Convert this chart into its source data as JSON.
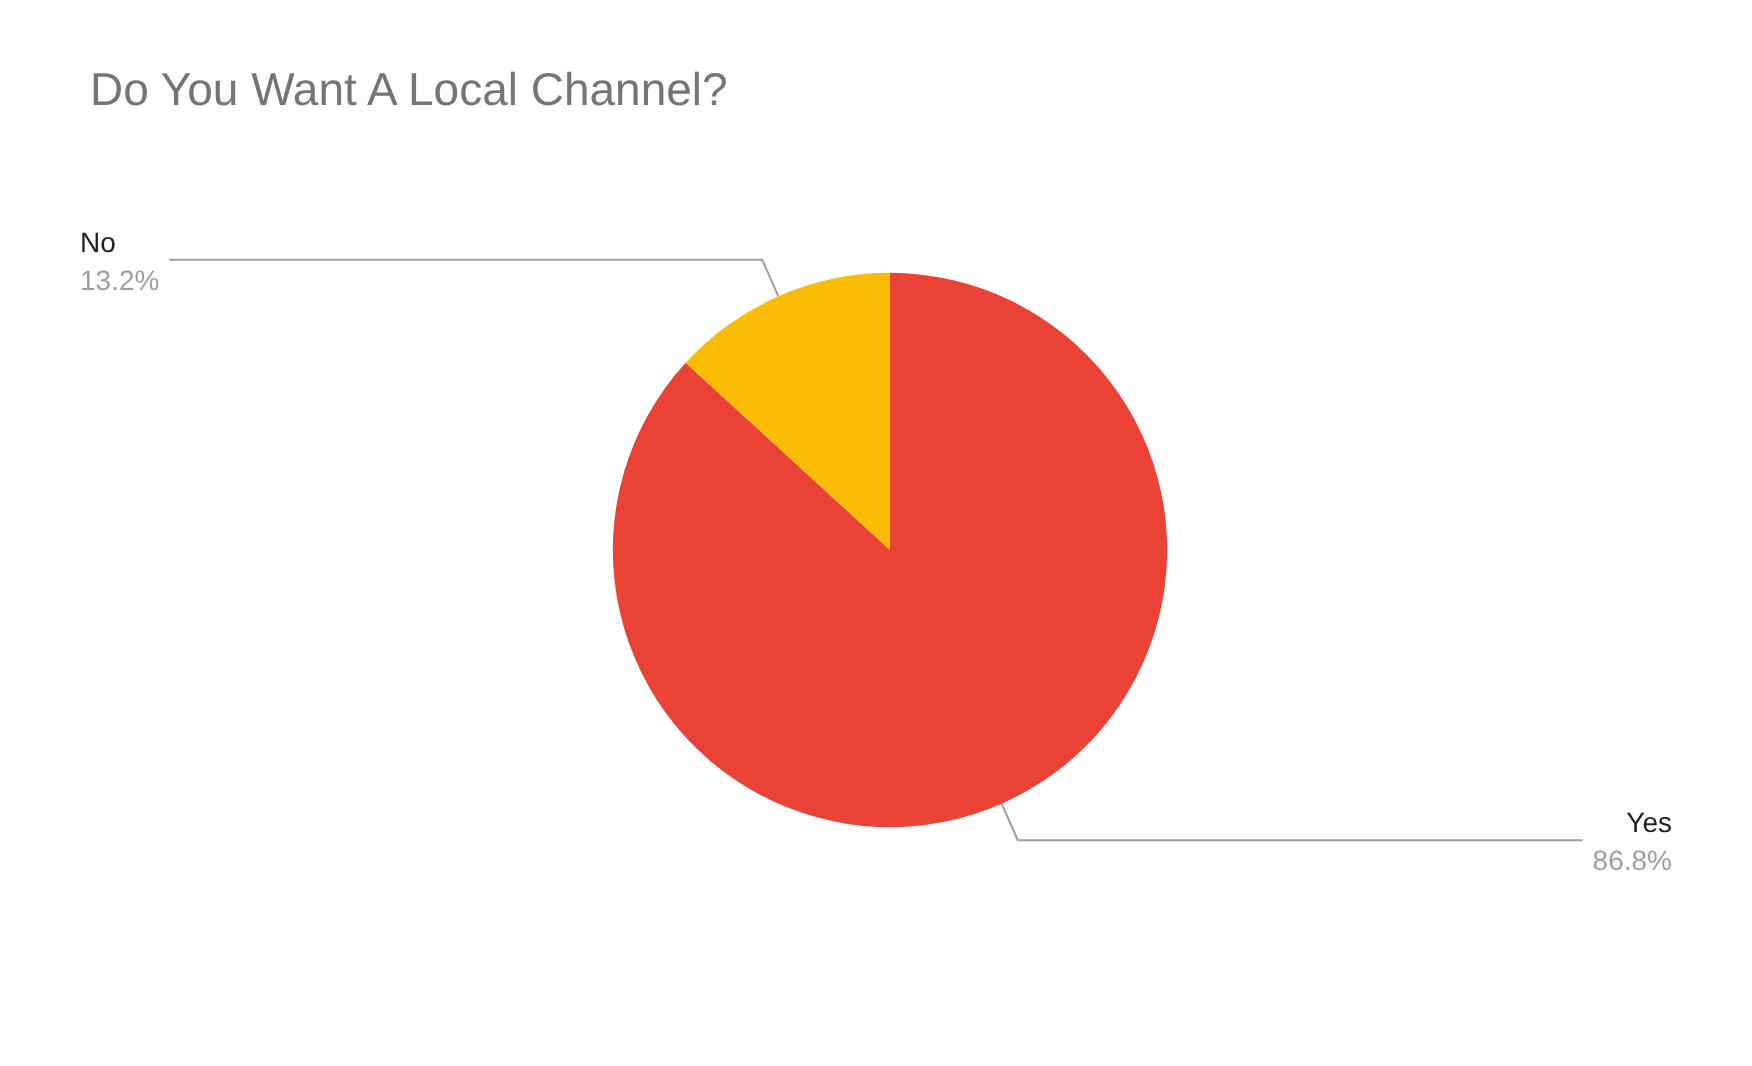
{
  "chart_data": {
    "type": "pie",
    "title": "Do You Want A Local Channel?",
    "categories": [
      "Yes",
      "No"
    ],
    "values": [
      86.8,
      13.2
    ],
    "colors": [
      "#ea4335",
      "#fbbc04"
    ],
    "value_labels": [
      "86.8%",
      "13.2%"
    ],
    "legend": false
  }
}
